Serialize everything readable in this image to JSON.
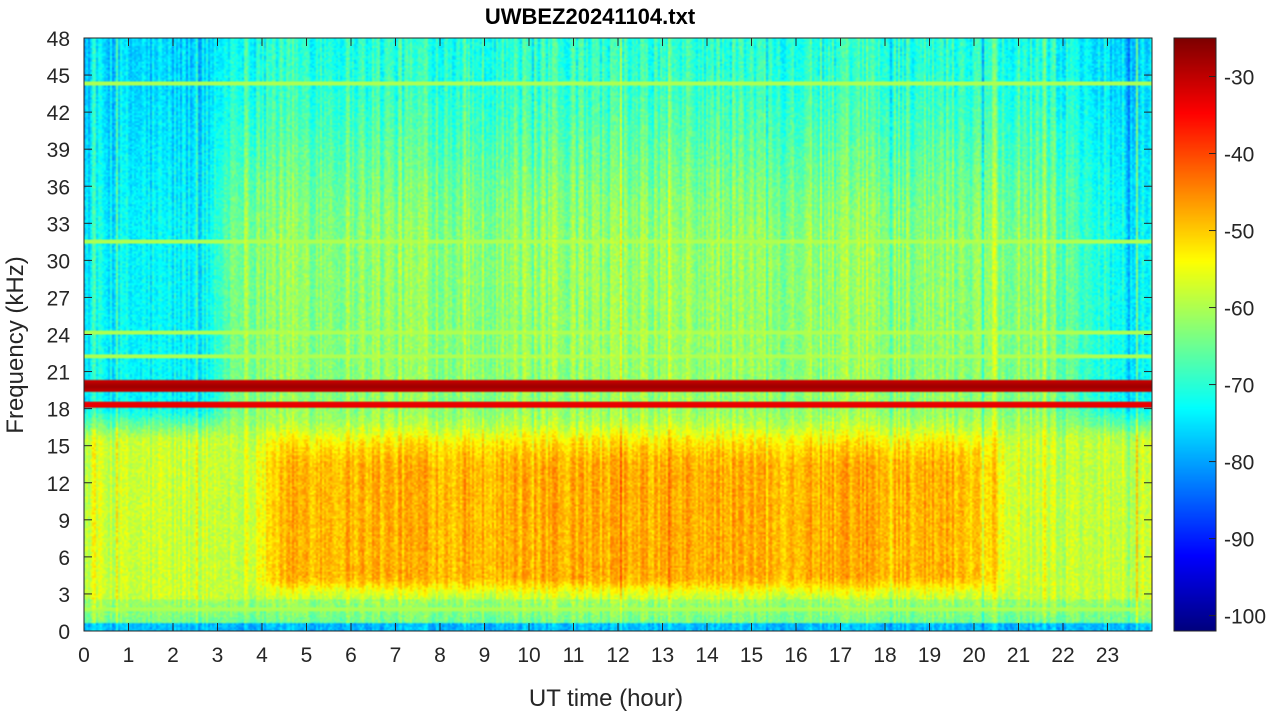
{
  "chart_data": {
    "type": "heatmap",
    "title": "UWBEZ20241104.txt",
    "xlabel": "UT time (hour)",
    "ylabel": "Frequency (kHz)",
    "xlim": [
      0,
      24
    ],
    "ylim": [
      0,
      48
    ],
    "x_ticks": [
      0,
      1,
      2,
      3,
      4,
      5,
      6,
      7,
      8,
      9,
      10,
      11,
      12,
      13,
      14,
      15,
      16,
      17,
      18,
      19,
      20,
      21,
      22,
      23
    ],
    "y_ticks": [
      0,
      3,
      6,
      9,
      12,
      15,
      18,
      21,
      24,
      27,
      30,
      33,
      36,
      39,
      42,
      45,
      48
    ],
    "colorbar": {
      "colormap": "jet",
      "clim": [
        -102,
        -25
      ],
      "ticks": [
        -30,
        -40,
        -50,
        -60,
        -70,
        -80,
        -90,
        -100
      ]
    },
    "features": {
      "narrowband_lines_khz": [
        19.8,
        18.3,
        24.2,
        22.2,
        44.3,
        31.5,
        3.9,
        1.8
      ],
      "background_levels": {
        "low_freq_day_max": -47,
        "low_freq_night": -58,
        "high_freq_day": -62,
        "high_freq_night": -80
      }
    }
  }
}
